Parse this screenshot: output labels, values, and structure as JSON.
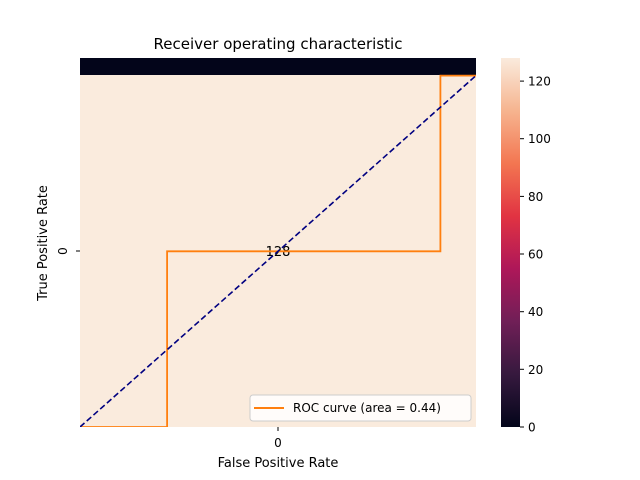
{
  "chart_data": {
    "type": "heatmap",
    "title": "Receiver operating characteristic",
    "xlabel": "False Positive Rate",
    "ylabel": "True Positive Rate",
    "x_tick_labels": [
      "0"
    ],
    "y_tick_labels": [
      "0"
    ],
    "cell_value_label": "128",
    "cells": [
      {
        "x": "0",
        "y": "0",
        "value": 128
      }
    ],
    "colorbar": {
      "range": [
        0,
        128
      ],
      "ticks": [
        "0",
        "20",
        "40",
        "60",
        "80",
        "100",
        "120"
      ],
      "colormap": [
        "#03051a",
        "#36193e",
        "#701f57",
        "#ae1759",
        "#e13342",
        "#f37651",
        "#f6b48f",
        "#faebdd"
      ]
    },
    "series": [
      {
        "name": "ROC curve (area = 0.44)",
        "type": "line",
        "color": "#ff7f0e",
        "x": [
          0,
          0.22,
          0.22,
          0.91,
          0.91,
          1.0
        ],
        "y": [
          0,
          0,
          0.5,
          0.5,
          1.0,
          1.0
        ]
      },
      {
        "type": "line",
        "color": "#000080",
        "dashed": true,
        "x": [
          0,
          1
        ],
        "y": [
          0,
          1
        ]
      }
    ],
    "xlim": [
      0,
      1
    ],
    "ylim": [
      0,
      1.05
    ],
    "legend_position": "lower-right"
  }
}
